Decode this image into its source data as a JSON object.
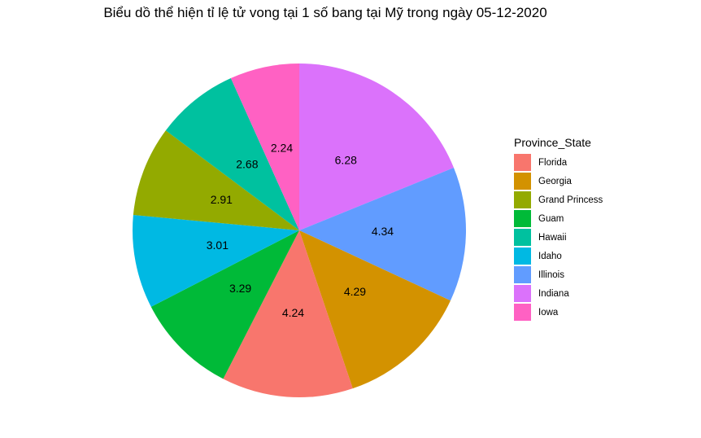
{
  "chart_data": {
    "type": "pie",
    "title": "Biểu dồ thể hiện tỉ lệ tử vong tại 1 số bang tại Mỹ trong ngày 05-12-2020",
    "legend_title": "Province_State",
    "legend_position": "right",
    "categories": [
      "Florida",
      "Georgia",
      "Grand Princess",
      "Guam",
      "Hawaii",
      "Idaho",
      "Illinois",
      "Indiana",
      "Iowa"
    ],
    "values": [
      4.24,
      4.29,
      2.91,
      3.29,
      2.68,
      3.01,
      4.34,
      6.28,
      2.24
    ],
    "colors": [
      "#F8766D",
      "#D39200",
      "#93AA00",
      "#00BA38",
      "#00C19F",
      "#00B9E3",
      "#619CFF",
      "#DB72FB",
      "#FF61C3"
    ],
    "slice_order_clockwise_from_top": [
      "Indiana",
      "Illinois",
      "Georgia",
      "Florida",
      "Guam",
      "Idaho",
      "Grand Princess",
      "Hawaii",
      "Iowa"
    ]
  }
}
